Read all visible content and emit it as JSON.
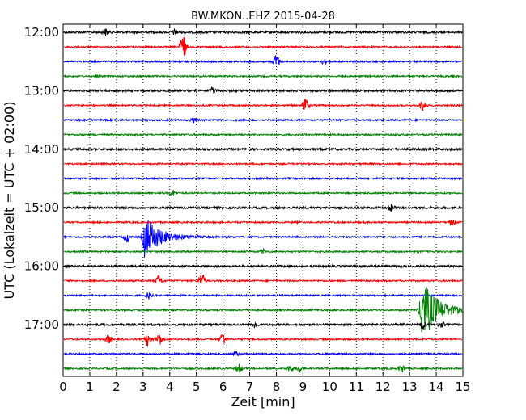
{
  "chart_data": {
    "type": "line",
    "title": "BW.MKON..EHZ 2015-04-28",
    "xlabel": "Zeit  [min]",
    "ylabel": "UTC (Lokalzeit = UTC + 02:00)",
    "xlim": [
      0,
      15
    ],
    "x_ticks": [
      "0",
      "1",
      "2",
      "3",
      "4",
      "5",
      "6",
      "7",
      "8",
      "9",
      "10",
      "11",
      "12",
      "13",
      "14",
      "15"
    ],
    "y_ticks": [
      "12:00",
      "13:00",
      "14:00",
      "15:00",
      "16:00",
      "17:00"
    ],
    "grid": "vertical dotted",
    "color_cycle": [
      "#000000",
      "#ff0000",
      "#0000ff",
      "#008000"
    ],
    "traces": [
      {
        "start": "12:00",
        "events": [
          {
            "t": 1.6,
            "a": 4
          },
          {
            "t": 4.2,
            "a": 3
          }
        ]
      },
      {
        "start": "12:15",
        "events": [
          {
            "t": 4.5,
            "a": 16
          }
        ]
      },
      {
        "start": "12:30",
        "events": [
          {
            "t": 8.0,
            "a": 9
          },
          {
            "t": 9.8,
            "a": 3
          }
        ]
      },
      {
        "start": "12:45",
        "events": []
      },
      {
        "start": "13:00",
        "events": [
          {
            "t": 5.6,
            "a": 3
          }
        ]
      },
      {
        "start": "13:15",
        "events": [
          {
            "t": 9.1,
            "a": 8
          },
          {
            "t": 13.5,
            "a": 7
          }
        ]
      },
      {
        "start": "13:30",
        "events": [
          {
            "t": 4.9,
            "a": 3
          }
        ]
      },
      {
        "start": "13:45",
        "events": []
      },
      {
        "start": "14:00",
        "events": []
      },
      {
        "start": "14:15",
        "events": []
      },
      {
        "start": "14:30",
        "events": []
      },
      {
        "start": "14:45",
        "events": [
          {
            "t": 4.1,
            "a": 4
          }
        ]
      },
      {
        "start": "15:00",
        "events": [
          {
            "t": 12.3,
            "a": 4
          }
        ]
      },
      {
        "start": "15:15",
        "events": [
          {
            "t": 14.6,
            "a": 4
          }
        ]
      },
      {
        "start": "15:30",
        "events": [
          {
            "t": 2.4,
            "a": 6
          },
          {
            "t": 3.1,
            "a": 25
          }
        ]
      },
      {
        "start": "15:45",
        "events": [
          {
            "t": 7.5,
            "a": 3
          }
        ]
      },
      {
        "start": "16:00",
        "events": []
      },
      {
        "start": "16:15",
        "events": [
          {
            "t": 3.6,
            "a": 7
          },
          {
            "t": 5.2,
            "a": 10
          }
        ]
      },
      {
        "start": "16:30",
        "events": [
          {
            "t": 3.2,
            "a": 4
          }
        ]
      },
      {
        "start": "16:45",
        "events": [
          {
            "t": 13.5,
            "a": 36
          }
        ]
      },
      {
        "start": "17:00",
        "events": [
          {
            "t": 7.2,
            "a": 4
          },
          {
            "t": 13.5,
            "a": 5
          },
          {
            "t": 14.2,
            "a": 3
          }
        ]
      },
      {
        "start": "17:15",
        "events": [
          {
            "t": 1.7,
            "a": 5
          },
          {
            "t": 3.2,
            "a": 9
          },
          {
            "t": 3.6,
            "a": 8
          },
          {
            "t": 6.0,
            "a": 8
          }
        ]
      },
      {
        "start": "17:30",
        "events": [
          {
            "t": 6.5,
            "a": 3
          }
        ]
      },
      {
        "start": "17:45",
        "events": [
          {
            "t": 6.6,
            "a": 5
          },
          {
            "t": 8.5,
            "a": 4
          },
          {
            "t": 8.9,
            "a": 4
          },
          {
            "t": 12.7,
            "a": 5
          }
        ]
      }
    ]
  }
}
